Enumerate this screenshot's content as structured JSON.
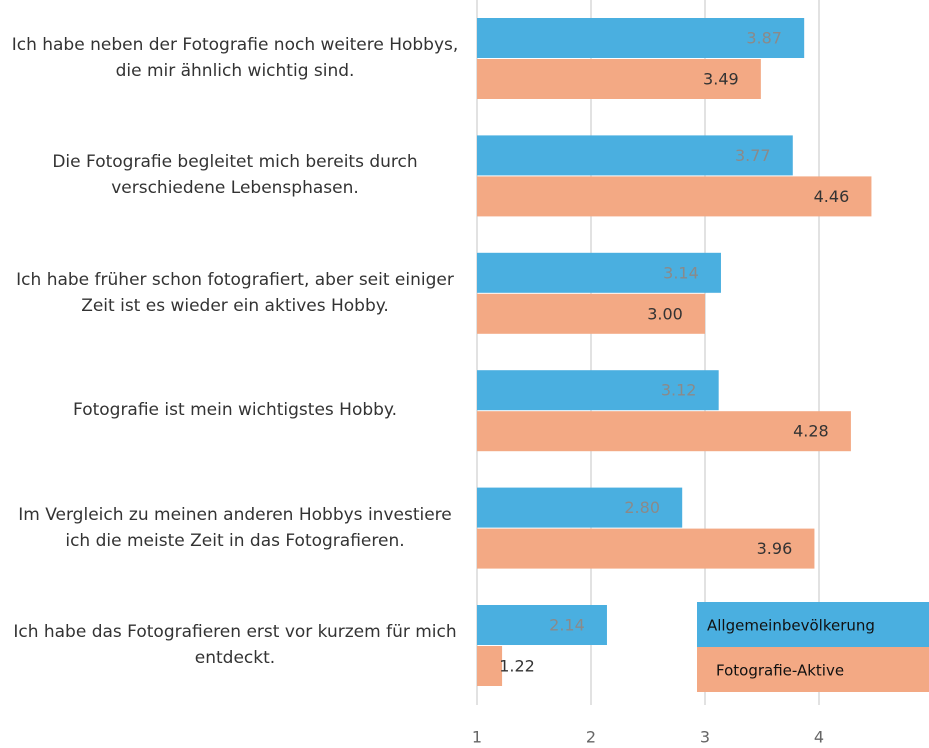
{
  "chart_data": {
    "type": "hbar",
    "categories": [
      "Ich habe neben der Fotografie noch weitere Hobbys, die mir ähnlich wichtig sind.",
      "Die Fotografie begleitet mich bereits durch verschiedene Lebensphasen.",
      "Ich habe früher schon fotografiert, aber seit einiger Zeit ist es wieder ein aktives Hobby.",
      "Fotografie ist mein wichtigstes Hobby.",
      "Im Vergleich zu meinen anderen Hobbys investiere ich die meiste Zeit in das Fotografieren.",
      "Ich habe das Fotografieren erst vor kurzem für mich entdeckt."
    ],
    "series": [
      {
        "name": "Allgemeinbevölkerung",
        "color": "#4aafe0",
        "values": [
          3.87,
          3.77,
          3.14,
          3.12,
          2.8,
          2.14
        ],
        "value_labels": [
          "3.87",
          "3.77",
          "3.14",
          "3.12",
          "2.80",
          "2.14"
        ]
      },
      {
        "name": "Fotografie-Aktive",
        "color": "#f3a984",
        "values": [
          3.49,
          4.46,
          3.0,
          4.28,
          3.96,
          1.22
        ],
        "value_labels": [
          "3.49",
          "4.46",
          "3.00",
          "4.28",
          "3.96",
          "1.22"
        ]
      }
    ],
    "xlim": [
      1,
      5
    ],
    "xticks": [
      1,
      2,
      3,
      4,
      5
    ],
    "grid": true,
    "legend": "lower right"
  }
}
